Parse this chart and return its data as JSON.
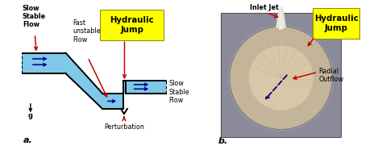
{
  "fig_width": 4.74,
  "fig_height": 1.86,
  "dpi": 100,
  "bg_color": "#ffffff",
  "channel_color_light": "#7ec8e8",
  "channel_outline": "#000000",
  "label_slow_stable_top": "Slow\nStable\nFlow",
  "label_fast_unstable": "Fast\nunstable\nFlow",
  "label_hydraulic_jump_a": "Hydraulic\nJump",
  "label_slow_stable_right": "Slow\nStable\nFlow",
  "label_perturbation": "Perturbation",
  "label_g": "g",
  "label_a": "a.",
  "label_inlet_jet": "Inlet Jet",
  "label_hydraulic_jump_b": "Hydraulic\nJump",
  "label_radial_outflow": "Radial\nOutflow",
  "label_b": "b.",
  "yellow_box_color": "#ffff00",
  "red_arrow_color": "#cc0000",
  "blue_arrow_color": "#00008b",
  "text_color": "#000000",
  "annotation_fontsize": 5.8,
  "photo_outer_bg": "#8a8a9a",
  "photo_circle_color": "#c4b49a",
  "photo_inner_color": "#d8c8a8",
  "photo_jet_color": "#e8e4dc"
}
